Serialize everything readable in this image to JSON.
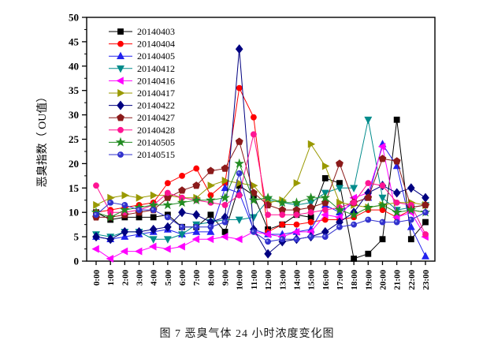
{
  "chart_data": {
    "type": "line",
    "title": "",
    "xlabel": "",
    "ylabel": "恶臭指数（ OU值）",
    "caption": "图 7 恶臭气体 24 小时浓度变化图",
    "ylim": [
      0,
      50
    ],
    "y_ticks": [
      0,
      5,
      10,
      15,
      20,
      25,
      30,
      35,
      40,
      45,
      50
    ],
    "y_minor_step": 2.5,
    "grid": "off",
    "legend_position": "top-left-inside",
    "categories": [
      "0:00",
      "1:00",
      "2:00",
      "3:00",
      "4:00",
      "5:00",
      "6:00",
      "7:00",
      "8:00",
      "9:00",
      "10:00",
      "11:00",
      "12:00",
      "13:00",
      "14:00",
      "15:00",
      "16:00",
      "17:00",
      "18:00",
      "19:00",
      "20:00",
      "21:00",
      "22:00",
      "23:00"
    ],
    "series": [
      {
        "name": "20140403",
        "marker": "square",
        "color": "#000000",
        "values": [
          10,
          8.5,
          9,
          9,
          9,
          9.5,
          7,
          7,
          9.5,
          6,
          15.5,
          13.5,
          6.5,
          7.5,
          9.5,
          9,
          17,
          16,
          0.5,
          1.5,
          4.5,
          29,
          4.5,
          8
        ]
      },
      {
        "name": "20140404",
        "marker": "circle",
        "color": "#ff0000",
        "values": [
          10,
          10.5,
          11,
          11.5,
          12,
          16,
          17.5,
          19,
          13.5,
          16,
          35.5,
          29.5,
          6,
          7.5,
          7.5,
          8,
          8.5,
          8.5,
          9,
          10.5,
          10.5,
          9,
          10.5,
          10
        ]
      },
      {
        "name": "20140405",
        "marker": "triangle-up",
        "color": "#2222ee",
        "values": [
          5,
          4.5,
          5,
          5.5,
          6,
          6.5,
          5.5,
          6,
          6,
          15,
          14,
          6.5,
          5.5,
          5.5,
          6,
          6.5,
          11.5,
          10,
          12,
          13,
          24,
          19.5,
          7,
          1
        ]
      },
      {
        "name": "20140412",
        "marker": "triangle-down",
        "color": "#008b8b",
        "values": [
          5.5,
          5,
          6,
          6,
          4.5,
          4.5,
          5.5,
          7.5,
          8,
          8.5,
          8.5,
          9,
          12.5,
          12,
          11.5,
          12,
          14,
          15,
          15,
          29,
          13,
          10.5,
          11,
          11.5
        ]
      },
      {
        "name": "20140416",
        "marker": "triangle-left",
        "color": "#ff00ff",
        "values": [
          2.5,
          0.5,
          2,
          2,
          3,
          2.5,
          3,
          4.5,
          4.5,
          5,
          4.5,
          6,
          5.5,
          5,
          6,
          6,
          9.5,
          9,
          13,
          14,
          23.5,
          9,
          10,
          5
        ]
      },
      {
        "name": "20140417",
        "marker": "triangle-right",
        "color": "#999900",
        "values": [
          11.5,
          13,
          13.5,
          13,
          13.5,
          13.5,
          13,
          13,
          15.5,
          16.5,
          16,
          15.5,
          12,
          12.5,
          16,
          24,
          19.5,
          12,
          11.5,
          11,
          11.5,
          12,
          12,
          11.5
        ]
      },
      {
        "name": "20140422",
        "marker": "diamond",
        "color": "#000080",
        "values": [
          5,
          4.5,
          6,
          6,
          6.5,
          7,
          10,
          9.5,
          8,
          9,
          43.5,
          6.5,
          1.5,
          4,
          4.5,
          5,
          6,
          8,
          10,
          14,
          15.5,
          14,
          15,
          13
        ]
      },
      {
        "name": "20140427",
        "marker": "pentagon",
        "color": "#8b1a1a",
        "values": [
          9,
          9,
          9.5,
          10,
          10.5,
          13,
          14.5,
          15.5,
          18.5,
          19,
          24.5,
          14,
          11.5,
          10.5,
          10.5,
          11,
          12,
          20,
          12,
          13,
          21,
          20.5,
          11,
          11.5
        ]
      },
      {
        "name": "20140428",
        "marker": "circle",
        "color": "#ff1493",
        "values": [
          15.5,
          10,
          10,
          10.5,
          11.5,
          14,
          13,
          12.5,
          12,
          11.5,
          13.5,
          26,
          9.5,
          9.5,
          9.5,
          10,
          10.5,
          11,
          12,
          16,
          15.5,
          12,
          11.5,
          5.5
        ]
      },
      {
        "name": "20140505",
        "marker": "star",
        "color": "#228b22",
        "values": [
          10,
          9,
          10.5,
          11,
          11.5,
          11.5,
          12,
          12.5,
          12.5,
          13,
          20,
          12.5,
          13,
          12,
          12,
          13,
          13,
          10.5,
          9.5,
          11,
          11.5,
          10,
          10.5,
          10
        ]
      },
      {
        "name": "20140515",
        "marker": "circle-dot",
        "color": "#3131cd",
        "values": [
          9.5,
          12,
          11.5,
          10.5,
          10.5,
          9,
          7,
          7,
          7,
          8,
          18,
          6,
          4,
          4.5,
          4.5,
          5,
          5,
          7,
          7.5,
          8.5,
          8,
          8,
          8.5,
          10
        ]
      }
    ]
  }
}
